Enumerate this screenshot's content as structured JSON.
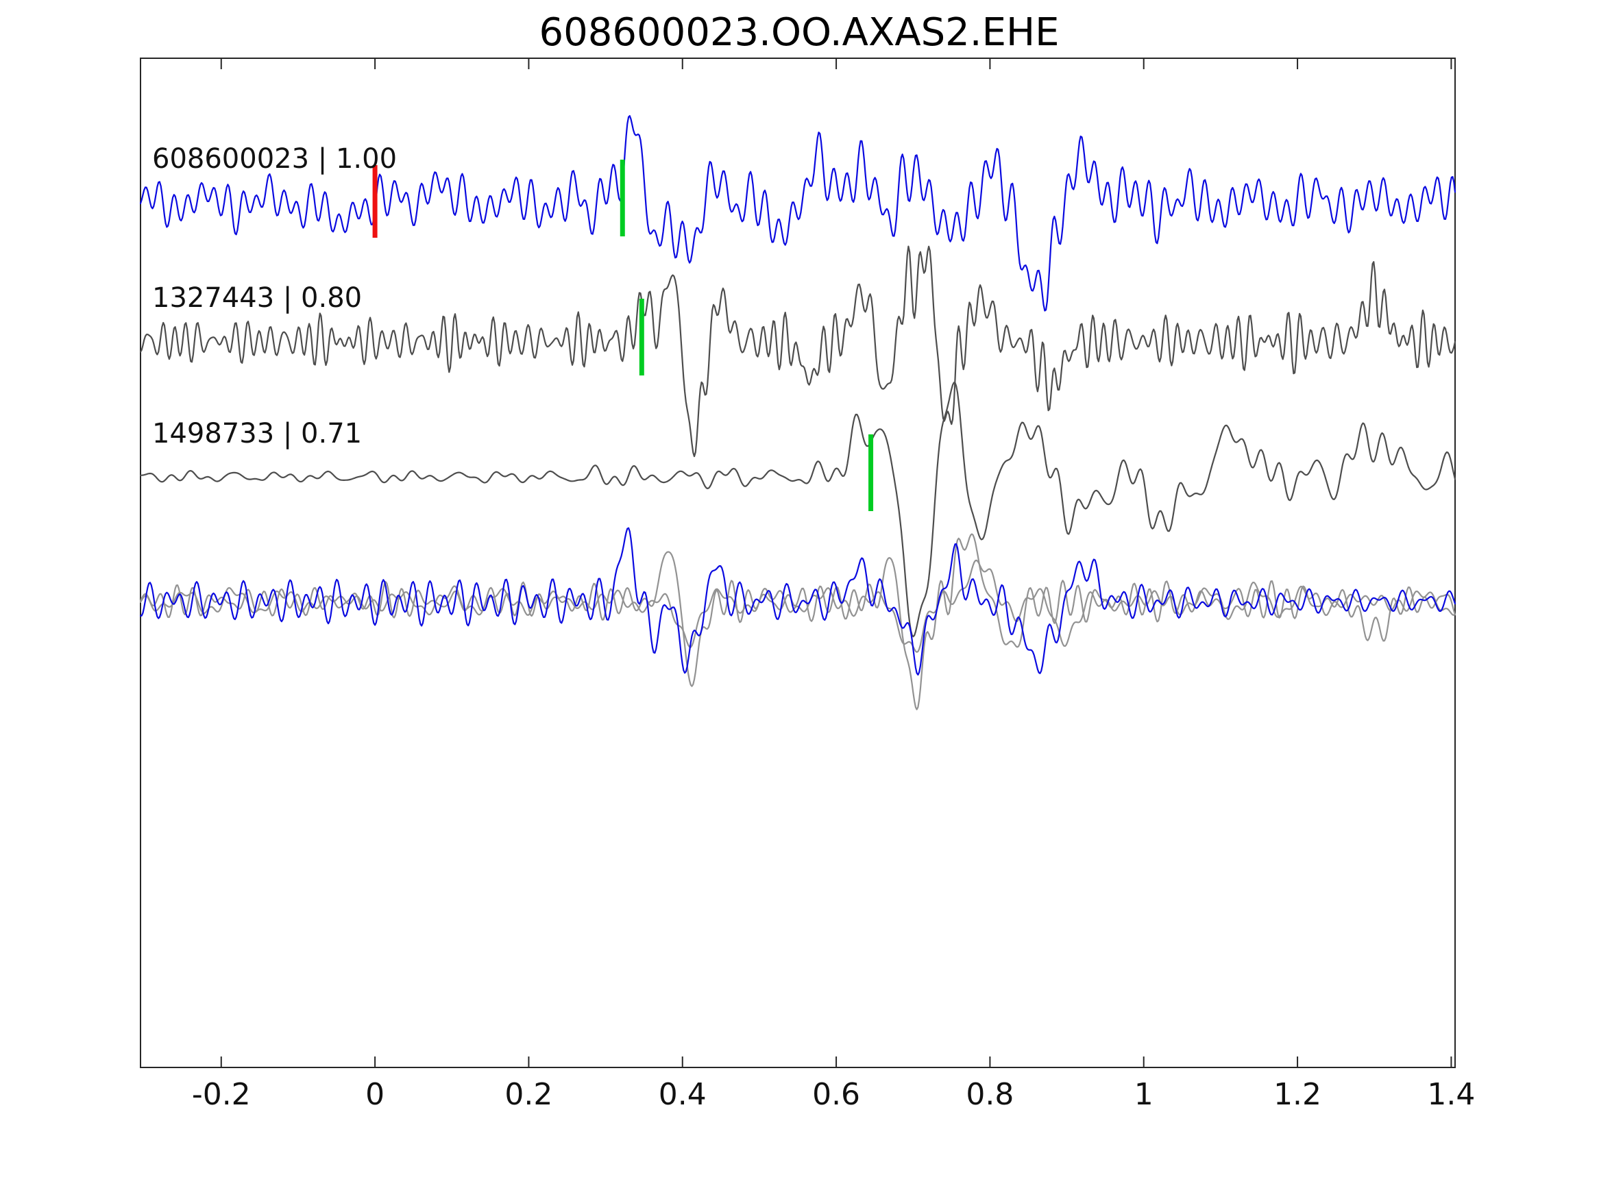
{
  "title": "608600023.OO.AXAS2.EHE",
  "colors": {
    "template_blue": "#0a0ae0",
    "candidate_gray": "#4d4d4d",
    "overlay_gray": "#929292",
    "pick_green": "#00cc22",
    "detection_red": "#ee1111",
    "axis": "#262626",
    "text": "#111111"
  },
  "chart_data": {
    "type": "line",
    "title": "608600023.OO.AXAS2.EHE",
    "xlabel": "",
    "ylabel": "",
    "xlim": [
      -0.305,
      1.405
    ],
    "xticks": [
      -0.2,
      0,
      0.2,
      0.4,
      0.6,
      0.8,
      1,
      1.2,
      1.4
    ],
    "xtick_labels": [
      "-0.2",
      "0",
      "0.2",
      "0.4",
      "0.6",
      "0.8",
      "1",
      "1.2",
      "1.4"
    ],
    "grid": false,
    "legend": "none",
    "traces": [
      {
        "name": "template-608600023",
        "label": "608600023 | 1.00",
        "template_id": "608600023",
        "correlation": 1.0,
        "row": 0,
        "color_key": "template_blue",
        "markers": [
          {
            "type": "detection",
            "x": 0.0,
            "color_key": "detection_red"
          },
          {
            "type": "pick",
            "x": 0.322,
            "color_key": "pick_green"
          }
        ],
        "synth": {
          "seed": 101,
          "freq": 23,
          "amp": 38,
          "envelope": [
            [
              -0.31,
              0.85
            ],
            [
              0.0,
              0.9
            ],
            [
              0.22,
              0.95
            ],
            [
              0.3,
              1.1
            ],
            [
              0.5,
              1.05
            ],
            [
              0.62,
              1.2
            ],
            [
              0.8,
              1.25
            ],
            [
              0.95,
              1.3
            ],
            [
              1.08,
              1.0
            ],
            [
              1.25,
              0.95
            ],
            [
              1.41,
              0.95
            ]
          ],
          "events": [
            {
              "x": 0.335,
              "w": 0.013,
              "A": 112
            },
            {
              "x": 0.3,
              "w": 0.012,
              "A": 58
            },
            {
              "x": 0.363,
              "w": 0.012,
              "A": -52
            },
            {
              "x": 0.41,
              "w": 0.02,
              "A": -78
            },
            {
              "x": 0.445,
              "w": 0.014,
              "A": 52
            },
            {
              "x": 0.285,
              "w": 0.01,
              "A": -40
            },
            {
              "x": 0.52,
              "w": 0.018,
              "A": -44
            },
            {
              "x": 0.575,
              "w": 0.015,
              "A": 50
            },
            {
              "x": 0.63,
              "w": 0.025,
              "A": 58
            },
            {
              "x": 0.665,
              "w": 0.015,
              "A": -55
            },
            {
              "x": 0.7,
              "w": 0.02,
              "A": 62
            },
            {
              "x": 0.745,
              "w": 0.02,
              "A": -58
            },
            {
              "x": 0.8,
              "w": 0.02,
              "A": 55
            },
            {
              "x": 0.862,
              "w": 0.032,
              "A": -112
            },
            {
              "x": 0.925,
              "w": 0.022,
              "A": 72
            },
            {
              "x": -0.05,
              "w": 0.015,
              "A": -45
            },
            {
              "x": 0.075,
              "w": 0.012,
              "A": 40
            }
          ]
        }
      },
      {
        "name": "candidate-1327443",
        "label": "1327443 | 0.80",
        "template_id": "1327443",
        "correlation": 0.8,
        "row": 1,
        "color_key": "candidate_gray",
        "markers": [
          {
            "type": "pick",
            "x": 0.347,
            "color_key": "pick_green"
          }
        ],
        "synth": {
          "seed": 202,
          "freq": 31,
          "amp": 32,
          "envelope": [
            [
              -0.31,
              0.9
            ],
            [
              0.2,
              0.95
            ],
            [
              0.33,
              1.0
            ],
            [
              0.5,
              1.0
            ],
            [
              0.62,
              1.1
            ],
            [
              0.85,
              1.15
            ],
            [
              1.05,
              1.0
            ],
            [
              1.22,
              1.2
            ],
            [
              1.41,
              0.95
            ]
          ],
          "events": [
            {
              "x": 0.35,
              "w": 0.012,
              "A": 62
            },
            {
              "x": 0.388,
              "w": 0.014,
              "A": 118
            },
            {
              "x": 0.413,
              "w": 0.017,
              "A": -150
            },
            {
              "x": 0.45,
              "w": 0.013,
              "A": 66
            },
            {
              "x": 0.565,
              "w": 0.015,
              "A": -55
            },
            {
              "x": 0.635,
              "w": 0.018,
              "A": 72
            },
            {
              "x": 0.663,
              "w": 0.013,
              "A": -85
            },
            {
              "x": 0.695,
              "w": 0.014,
              "A": 90
            },
            {
              "x": 0.72,
              "w": 0.012,
              "A": 135
            },
            {
              "x": 0.742,
              "w": 0.014,
              "A": -125
            },
            {
              "x": 0.79,
              "w": 0.018,
              "A": 62
            },
            {
              "x": 0.88,
              "w": 0.02,
              "A": -66
            },
            {
              "x": 1.3,
              "w": 0.02,
              "A": 70
            }
          ]
        }
      },
      {
        "name": "candidate-1498733",
        "label": "1498733 | 0.71",
        "template_id": "1498733",
        "correlation": 0.71,
        "row": 2,
        "color_key": "candidate_gray",
        "markers": [
          {
            "type": "pick",
            "x": 0.645,
            "color_key": "pick_green"
          }
        ],
        "synth": {
          "seed": 303,
          "freq": 21,
          "amp": 26,
          "envelope": [
            [
              -0.31,
              0.28
            ],
            [
              0.18,
              0.3
            ],
            [
              0.27,
              0.5
            ],
            [
              0.45,
              0.5
            ],
            [
              0.56,
              0.65
            ],
            [
              0.62,
              0.95
            ],
            [
              0.7,
              1.3
            ],
            [
              0.82,
              1.45
            ],
            [
              1.0,
              1.3
            ],
            [
              1.18,
              1.2
            ],
            [
              1.41,
              1.3
            ]
          ],
          "events": [
            {
              "x": 0.625,
              "w": 0.018,
              "A": 62
            },
            {
              "x": 0.662,
              "w": 0.016,
              "A": 88
            },
            {
              "x": 0.703,
              "w": 0.021,
              "A": -240
            },
            {
              "x": 0.748,
              "w": 0.018,
              "A": 115
            },
            {
              "x": 0.792,
              "w": 0.018,
              "A": -78
            },
            {
              "x": 0.845,
              "w": 0.022,
              "A": 85
            },
            {
              "x": 0.92,
              "w": 0.025,
              "A": -60
            },
            {
              "x": 1.03,
              "w": 0.028,
              "A": -64
            },
            {
              "x": 1.12,
              "w": 0.024,
              "A": 70
            },
            {
              "x": 1.3,
              "w": 0.03,
              "A": 60
            }
          ]
        }
      },
      {
        "name": "aligned-overlay",
        "label": "",
        "row": 3,
        "markers": [],
        "components": [
          {
            "color_key": "overlay_gray",
            "synth": {
              "seed": 606,
              "freq": 19,
              "amp": 24,
              "envelope": [
                [
                  -0.31,
                  0.65
                ],
                [
                  0.3,
                  0.75
                ],
                [
                  0.55,
                  0.85
                ],
                [
                  0.75,
                  0.95
                ],
                [
                  1.0,
                  0.85
                ],
                [
                  1.41,
                  0.8
                ]
              ],
              "events": [
                {
                  "x": 0.405,
                  "w": 0.02,
                  "A": -48
                },
                {
                  "x": 0.7,
                  "w": 0.024,
                  "A": -62
                },
                {
                  "x": 0.78,
                  "w": 0.02,
                  "A": 56
                },
                {
                  "x": 0.9,
                  "w": 0.025,
                  "A": -40
                }
              ]
            }
          },
          {
            "color_key": "overlay_gray",
            "synth": {
              "seed": 505,
              "freq": 28,
              "amp": 27,
              "envelope": [
                [
                  -0.31,
                  0.7
                ],
                [
                  0.3,
                  0.8
                ],
                [
                  0.5,
                  0.85
                ],
                [
                  0.68,
                  1.05
                ],
                [
                  0.85,
                  1.1
                ],
                [
                  1.05,
                  0.9
                ],
                [
                  1.41,
                  0.85
                ]
              ],
              "events": [
                {
                  "x": 0.385,
                  "w": 0.013,
                  "A": 88
                },
                {
                  "x": 0.412,
                  "w": 0.015,
                  "A": -118
                },
                {
                  "x": 0.672,
                  "w": 0.015,
                  "A": 68
                },
                {
                  "x": 0.702,
                  "w": 0.02,
                  "A": -132
                },
                {
                  "x": 0.772,
                  "w": 0.022,
                  "A": 92
                },
                {
                  "x": 0.825,
                  "w": 0.018,
                  "A": -68
                },
                {
                  "x": 1.3,
                  "w": 0.02,
                  "A": -50
                }
              ]
            }
          },
          {
            "color_key": "template_blue",
            "synth": {
              "seed": 404,
              "freq": 23,
              "amp": 29,
              "envelope": [
                [
                  -0.31,
                  0.75
                ],
                [
                  0.22,
                  0.85
                ],
                [
                  0.35,
                  1.0
                ],
                [
                  0.55,
                  0.95
                ],
                [
                  0.75,
                  1.1
                ],
                [
                  0.95,
                  1.0
                ],
                [
                  1.2,
                  0.85
                ],
                [
                  1.41,
                  0.8
                ]
              ],
              "events": [
                {
                  "x": 0.328,
                  "w": 0.013,
                  "A": 96
                },
                {
                  "x": 0.362,
                  "w": 0.012,
                  "A": -50
                },
                {
                  "x": 0.408,
                  "w": 0.016,
                  "A": -86
                },
                {
                  "x": 0.443,
                  "w": 0.014,
                  "A": 48
                },
                {
                  "x": 0.63,
                  "w": 0.02,
                  "A": 44
                },
                {
                  "x": 0.705,
                  "w": 0.02,
                  "A": -76
                },
                {
                  "x": 0.755,
                  "w": 0.018,
                  "A": 56
                },
                {
                  "x": 0.862,
                  "w": 0.028,
                  "A": -84
                },
                {
                  "x": 0.922,
                  "w": 0.02,
                  "A": 56
                }
              ]
            }
          }
        ]
      }
    ]
  }
}
